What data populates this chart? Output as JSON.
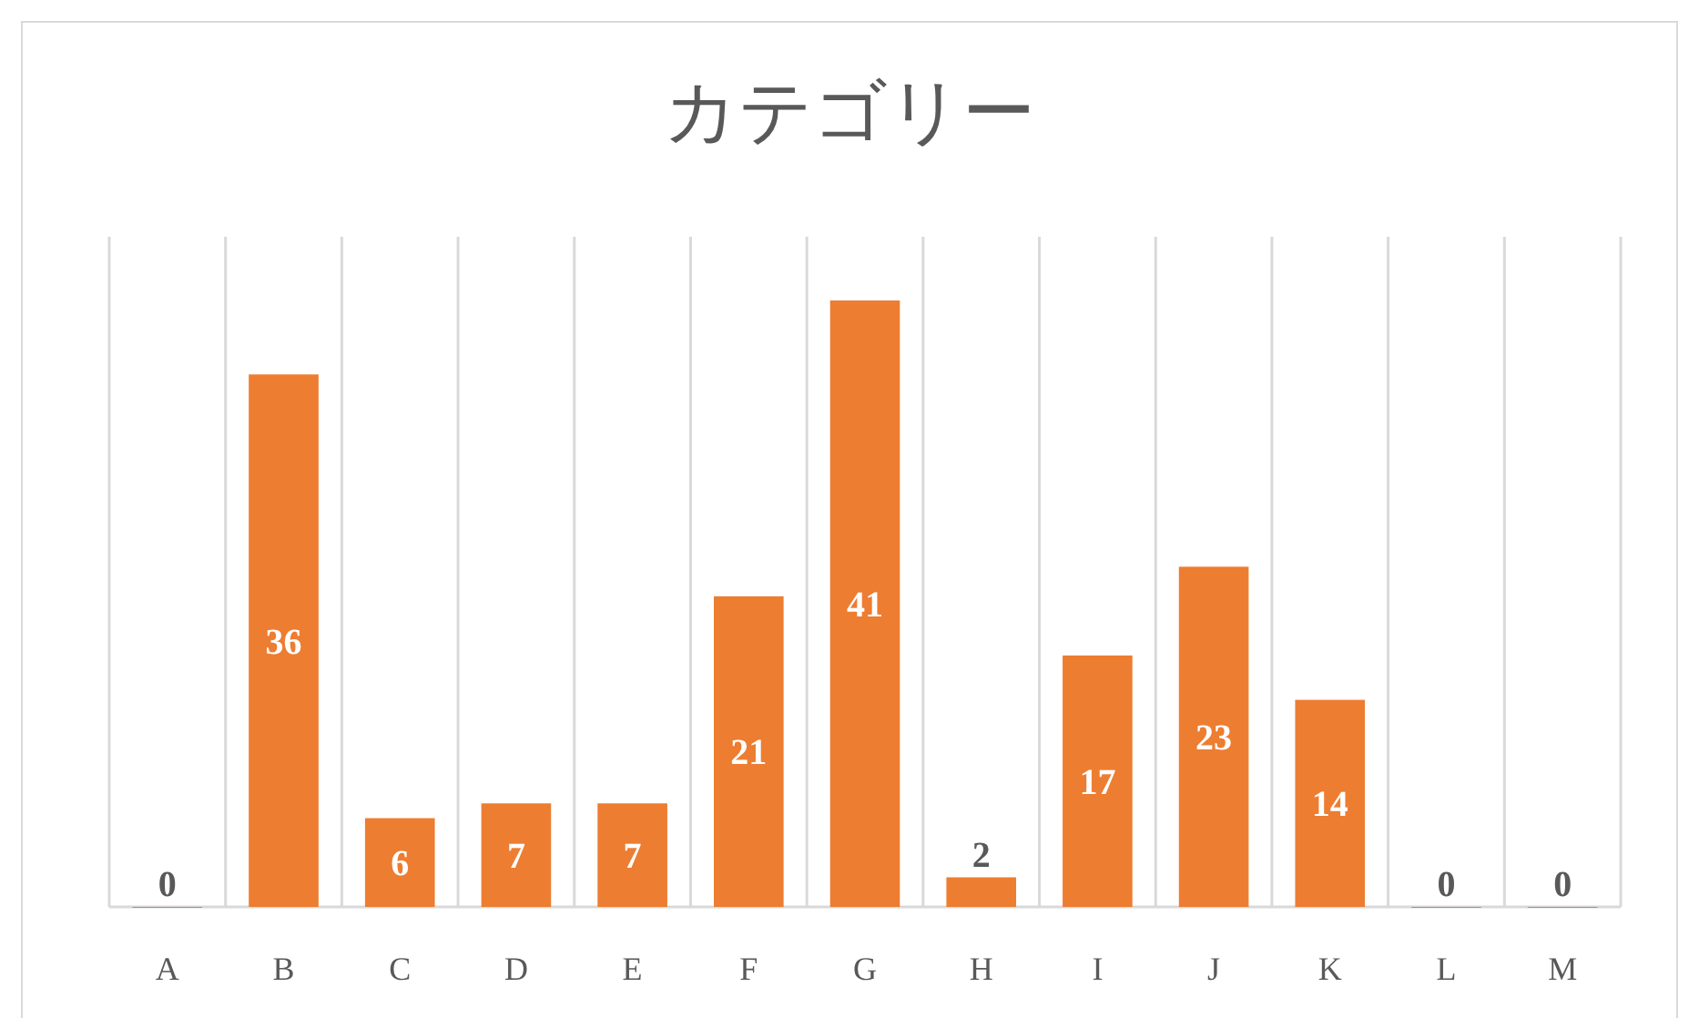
{
  "chart_data": {
    "type": "bar",
    "title": "カテゴリー",
    "categories": [
      "A",
      "B",
      "C",
      "D",
      "E",
      "F",
      "G",
      "H",
      "I",
      "J",
      "K",
      "L",
      "M"
    ],
    "values": [
      0,
      36,
      6,
      7,
      7,
      21,
      41,
      2,
      17,
      23,
      14,
      0,
      0
    ],
    "color": "#ed7d31",
    "data_labels": true,
    "grid": "x"
  }
}
